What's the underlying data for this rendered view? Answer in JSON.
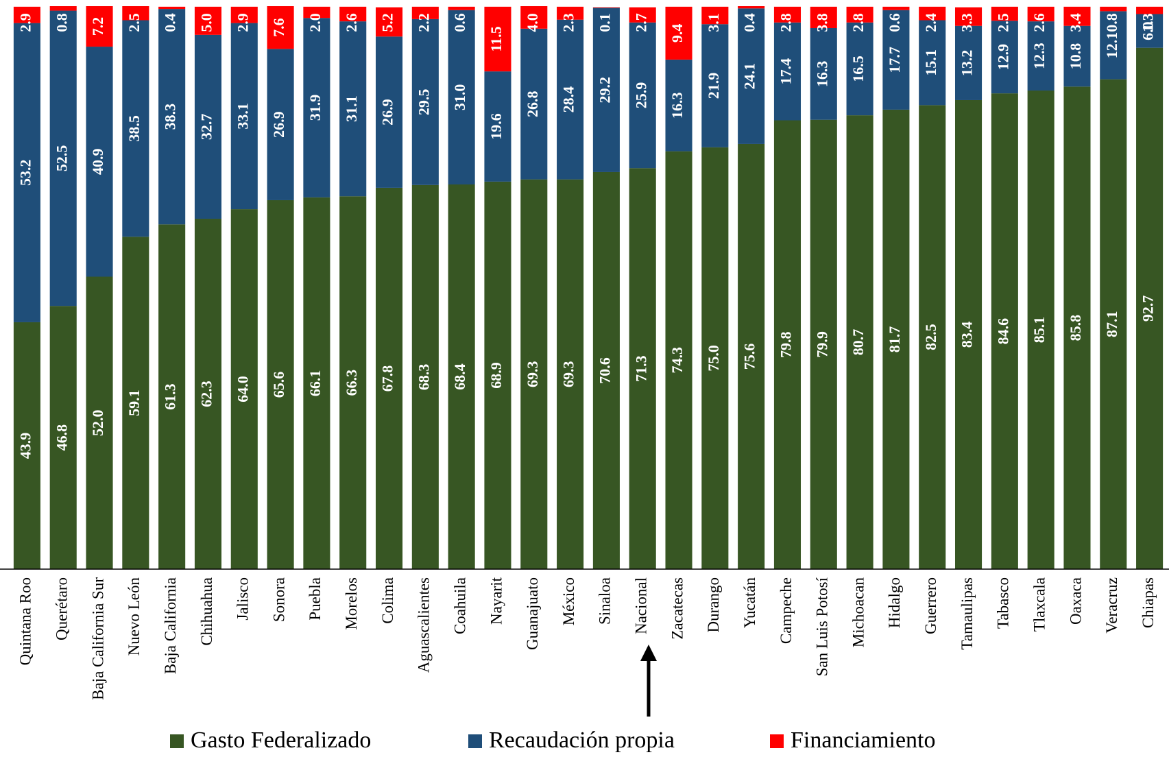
{
  "chart_data": {
    "type": "stacked_bar",
    "categories": [
      "Quintana Roo",
      "Querétaro",
      "Baja California Sur",
      "Nuevo León",
      "Baja California",
      "Chihuahua",
      "Jalisco",
      "Sonora",
      "Puebla",
      "Morelos",
      "Colima",
      "Aguascalientes",
      "Coahuila",
      "Nayarit",
      "Guanajuato",
      "México",
      "Sinaloa",
      "Nacional",
      "Zacatecas",
      "Durango",
      "Yucatán",
      "Campeche",
      "San Luis Potosí",
      "Michoacan",
      "Hidalgo",
      "Guerrero",
      "Tamaulipas",
      "Tabasco",
      "Tlaxcala",
      "Oaxaca",
      "Veracruz",
      "Chiapas"
    ],
    "series": [
      {
        "name": "Gasto Federalizado",
        "color": "#375623",
        "values": [
          43.9,
          46.8,
          52.0,
          59.1,
          61.3,
          62.3,
          64.0,
          65.6,
          66.1,
          66.3,
          67.8,
          68.3,
          68.4,
          68.9,
          69.3,
          69.3,
          70.6,
          71.3,
          74.3,
          75.0,
          75.6,
          79.8,
          79.9,
          80.7,
          81.7,
          82.5,
          83.4,
          84.6,
          85.1,
          85.8,
          87.1,
          92.7
        ],
        "value_labels": [
          "43.9",
          "46.8",
          "52.0",
          "59.1",
          "61.3",
          "62.3",
          "64.0",
          "65.6",
          "66.1",
          "66.3",
          "67.8",
          "68.3",
          "68.4",
          "68.9",
          "69.3",
          "69.3",
          "70.6",
          "71.3",
          "74.3",
          "75.0",
          "75.6",
          "79.8",
          "79.9",
          "80.7",
          "81.7",
          "82.5",
          "83.4",
          "84.6",
          "85.1",
          "85.8",
          "87.1",
          "92.7"
        ]
      },
      {
        "name": "Recaudación propia",
        "color": "#1f4e79",
        "values": [
          53.2,
          52.5,
          40.9,
          38.5,
          38.3,
          32.7,
          33.1,
          26.9,
          31.9,
          31.1,
          26.9,
          29.5,
          31.0,
          19.6,
          26.8,
          28.4,
          29.2,
          25.9,
          16.3,
          21.9,
          24.1,
          17.4,
          16.3,
          16.5,
          17.7,
          15.1,
          13.2,
          12.9,
          12.3,
          10.8,
          12.1,
          6.0
        ],
        "value_labels": [
          "53.2",
          "52.5",
          "40.9",
          "38.5",
          "38.3",
          "32.7",
          "33.1",
          "26.9",
          "31.9",
          "31.1",
          "26.9",
          "29.5",
          "31.0",
          "19.6",
          "26.8",
          "28.4",
          "29.2",
          "25.9",
          "16.3",
          "21.9",
          "24.1",
          "17.4",
          "16.3",
          "16.5",
          "17.7",
          "15.1",
          "13.2",
          "12.9",
          "12.3",
          "10.8",
          "12.1",
          "6.0"
        ]
      },
      {
        "name": "Financiamiento",
        "color": "#ff0000",
        "values": [
          2.9,
          0.8,
          7.2,
          2.5,
          0.4,
          5.0,
          2.9,
          7.6,
          2.0,
          2.6,
          5.2,
          2.2,
          0.6,
          11.5,
          4.0,
          2.3,
          0.1,
          2.7,
          9.4,
          3.1,
          0.4,
          2.8,
          3.8,
          2.8,
          0.6,
          2.4,
          3.3,
          2.5,
          2.6,
          3.4,
          0.8,
          1.3
        ],
        "value_labels": [
          "2.9",
          "0.8",
          "7.2",
          "2.5",
          "0.4",
          "5.0",
          "2.9",
          "7.6",
          "2.0",
          "2.6",
          "5.2",
          "2.2",
          "0.6",
          "11.5",
          "4.0",
          "2.3",
          "0.1",
          "2.7",
          "9.4",
          "3.1",
          "0.4",
          "2.8",
          "3.8",
          "2.8",
          "0.6",
          "2.4",
          "3.3",
          "2.5",
          "2.6",
          "3.4",
          "0.8",
          "1.3"
        ]
      }
    ]
  }
}
